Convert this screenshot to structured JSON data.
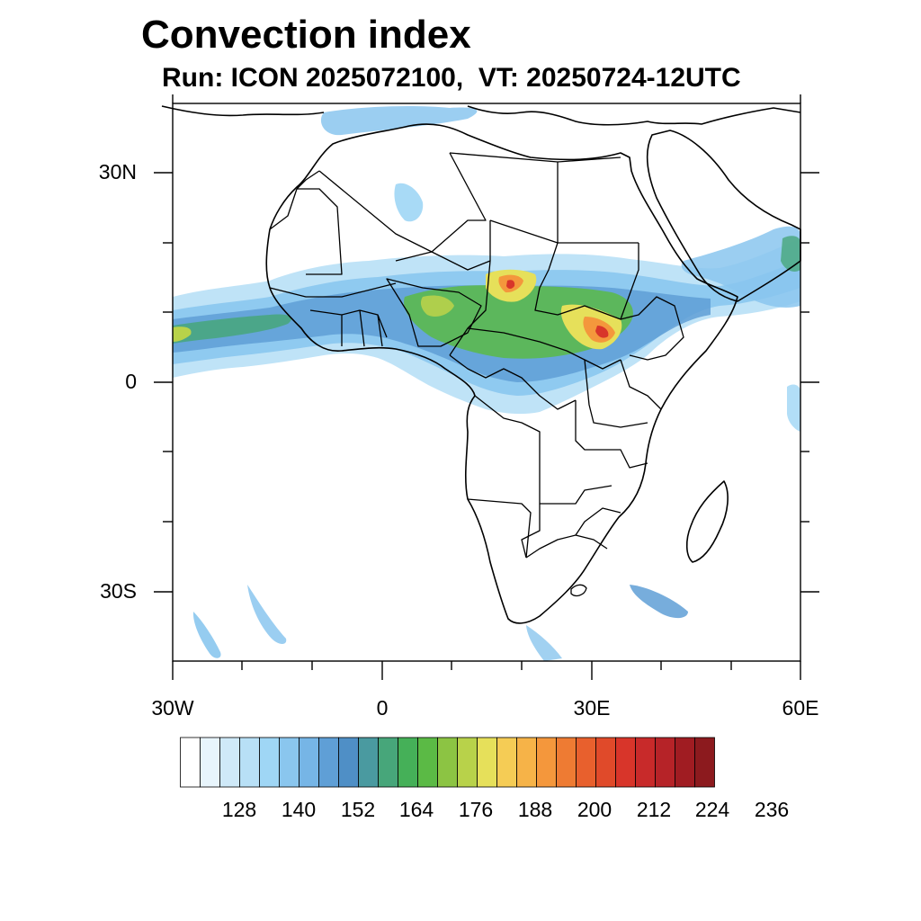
{
  "map": {
    "title": "Convection index",
    "subtitle": "Run: ICON 2025072100,  VT: 20250724-12UTC",
    "lat_labels": [
      "30N",
      "0",
      "30S"
    ],
    "lon_labels": [
      "30W",
      "0",
      "30E",
      "60E"
    ],
    "extent": {
      "lon_min": -30,
      "lon_max": 60,
      "lat_min": -40,
      "lat_max": 40
    }
  },
  "colorbar": {
    "labels": [
      "128",
      "140",
      "152",
      "164",
      "176",
      "188",
      "200",
      "212",
      "224",
      "236"
    ],
    "colors": [
      "#ffffff",
      "#e8f5fc",
      "#cfe9f8",
      "#b8e0f6",
      "#9fd6f5",
      "#8ac6ee",
      "#76b5e6",
      "#5f9fd6",
      "#4f8fc6",
      "#4a9aa0",
      "#47a67a",
      "#45b058",
      "#5bba45",
      "#8cc443",
      "#b8d24a",
      "#e6e05a",
      "#f5cc55",
      "#f6b348",
      "#f4973c",
      "#ee7b33",
      "#e8602d",
      "#e04a2a",
      "#d8352a",
      "#c82a2a",
      "#b62328",
      "#a01c22",
      "#8c1a1e"
    ]
  }
}
